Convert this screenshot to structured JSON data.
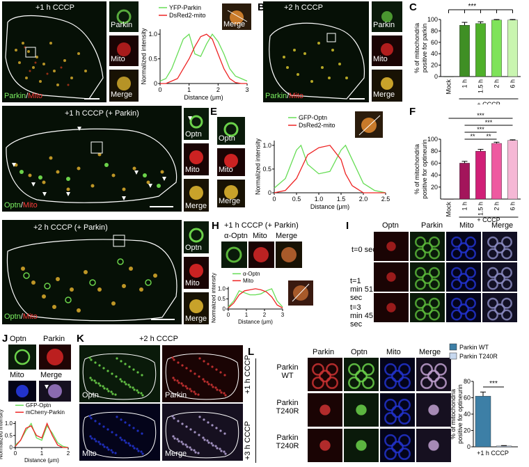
{
  "panels": {
    "A": {
      "letter": "A",
      "title": "+1 h CCCP",
      "inset_labels": [
        "Parkin",
        "Mito",
        "Merge"
      ],
      "legend_labels": [
        "Parkin",
        "Mito"
      ],
      "profile": {
        "series_names": [
          "YFP-Parkin",
          "DsRed2-mito"
        ],
        "ylabel": "Normalized intensity",
        "xlabel": "Distance (μm)",
        "xticks": [
          "0",
          "1",
          "2",
          "3"
        ],
        "yticks": [
          "0",
          "0.5",
          "1.0"
        ],
        "inset": "Merge"
      }
    },
    "B": {
      "letter": "B",
      "title": "+2 h CCCP",
      "inset_labels": [
        "Parkin",
        "Mito",
        "Merge"
      ],
      "legend_labels": [
        "Parkin",
        "Mito"
      ]
    },
    "C": {
      "letter": "C",
      "ylabel": "% of mitochondria positive for parkin",
      "yticks": [
        "0",
        "20",
        "40",
        "60",
        "80",
        "100"
      ],
      "categories": [
        "Mock",
        "1 h",
        "1.5 h",
        "2 h",
        "6 h"
      ],
      "group_label": "+ CCCP",
      "sig": "***"
    },
    "D": {
      "letter": "D",
      "title": "+1 h CCCP (+ Parkin)",
      "inset_labels": [
        "Optn",
        "Mito",
        "Merge"
      ],
      "legend_labels": [
        "Optn",
        "Mito"
      ]
    },
    "E": {
      "letter": "E",
      "inset_labels": [
        "Optn",
        "Mito",
        "Merge"
      ],
      "profile": {
        "series_names": [
          "GFP-Optn",
          "DsRed2-mito"
        ],
        "ylabel": "Normalized intensity",
        "xlabel": "Distance (μm)",
        "xticks": [
          "0",
          "0.5",
          "1.0",
          "1.5",
          "2.0",
          "2.5"
        ],
        "yticks": [
          "0",
          "0.5",
          "1.0"
        ]
      }
    },
    "F": {
      "letter": "F",
      "ylabel": "% of mitochondria positive for optineurin",
      "yticks": [
        "20",
        "40",
        "60",
        "80",
        "100"
      ],
      "categories": [
        "Mock",
        "1 h",
        "1.5 h",
        "2 h",
        "6 h"
      ],
      "group_label": "+ CCCP",
      "sig": [
        "***",
        "***",
        "***",
        "**",
        "**"
      ]
    },
    "G": {
      "letter": "G",
      "title": "+2 h CCCP (+ Parkin)",
      "inset_labels": [
        "Optn",
        "Mito",
        "Merge"
      ],
      "legend_labels": [
        "Optn",
        "Mito"
      ]
    },
    "H": {
      "letter": "H",
      "title": "+1 h CCCP (+ Parkin)",
      "col_labels": [
        "α-Optn",
        "Mito",
        "Merge"
      ],
      "profile": {
        "series_names": [
          "α-Optn",
          "Mito"
        ],
        "ylabel": "Normalized intensity",
        "xlabel": "Distance (μm)",
        "xticks": [
          "0",
          "1",
          "2",
          "3"
        ],
        "yticks": [
          "0",
          "0.5",
          "1.0"
        ]
      }
    },
    "I": {
      "letter": "I",
      "col_labels": [
        "Optn",
        "Parkin",
        "Mito",
        "Merge"
      ],
      "row_labels": [
        "t=0 sec",
        "t=1 min 51 sec",
        "t=3 min 45 sec"
      ]
    },
    "J": {
      "letter": "J",
      "labels": [
        "Optn",
        "Parkin",
        "Mito",
        "Merge"
      ],
      "profile": {
        "series_names": [
          "GFP-Optn",
          "mCherry-Parkin"
        ],
        "ylabel": "Normalized intensity",
        "xlabel": "Distance (μm)",
        "xticks": [
          "0",
          "1",
          "2"
        ],
        "yticks": [
          "0",
          "0.5",
          "1.0"
        ]
      }
    },
    "K": {
      "letter": "K",
      "title": "+2 h CCCP",
      "labels": [
        "Optn",
        "Parkin",
        "Mito",
        "Merge"
      ]
    },
    "L": {
      "letter": "L",
      "col_labels": [
        "Parkin",
        "Optn",
        "Mito",
        "Merge"
      ],
      "row_labels": [
        "Parkin WT",
        "Parkin T240R",
        "Parkin T240R"
      ],
      "side_labels": [
        "+1 h CCCP",
        "+3 h CCCP"
      ],
      "bar": {
        "legend": [
          "Parkin WT",
          "Parkin T240R"
        ],
        "ylabel": "% of mitochondria positive for optineurin",
        "yticks": [
          "0",
          "20",
          "40",
          "60",
          "80"
        ],
        "xlabel": "+1 h CCCP",
        "sig": "***"
      }
    }
  },
  "chart_data": [
    {
      "type": "bar",
      "panel": "C",
      "categories": [
        "Mock",
        "1 h",
        "1.5 h",
        "2 h",
        "6 h"
      ],
      "values": [
        0,
        90,
        93,
        99,
        99
      ],
      "errors": [
        0,
        5,
        3,
        1,
        1
      ],
      "colors": [
        "#2f6d1e",
        "#3f8f24",
        "#4fb02a",
        "#7fe35a",
        "#c9f5b0"
      ],
      "ylabel": "% of mitochondria positive for parkin",
      "ylim": [
        0,
        100
      ]
    },
    {
      "type": "bar",
      "panel": "F",
      "categories": [
        "Mock",
        "1 h",
        "1.5 h",
        "2 h",
        "6 h"
      ],
      "values": [
        0,
        60,
        80,
        93,
        98
      ],
      "errors": [
        0,
        3,
        3,
        2,
        1
      ],
      "colors": [
        "#6b0f3a",
        "#a3155b",
        "#d01f77",
        "#ee5aa0",
        "#f5b7d5"
      ],
      "ylabel": "% of mitochondria positive for optineurin",
      "ylim": [
        0,
        100
      ]
    },
    {
      "type": "bar",
      "panel": "L",
      "categories": [
        "Parkin WT",
        "Parkin T240R"
      ],
      "values": [
        62,
        1
      ],
      "errors": [
        5,
        0.5
      ],
      "colors": [
        "#3d7fa6",
        "#c7d8ee"
      ],
      "ylabel": "% of mitochondria positive for optineurin",
      "ylim": [
        0,
        80
      ]
    },
    {
      "type": "line",
      "panel": "A",
      "x": [
        0,
        0.2,
        0.4,
        0.6,
        0.8,
        1.0,
        1.2,
        1.4,
        1.6,
        1.8,
        2.0,
        2.2,
        2.4,
        2.6,
        2.8,
        3.0
      ],
      "series": [
        {
          "name": "YFP-Parkin",
          "color": "#66dd55",
          "values": [
            0.05,
            0.1,
            0.3,
            0.6,
            0.9,
            1.0,
            0.6,
            0.55,
            0.8,
            1.0,
            0.85,
            0.6,
            0.3,
            0.15,
            0.1,
            0.05
          ]
        },
        {
          "name": "DsRed2-mito",
          "color": "#ee2222",
          "values": [
            0.0,
            0.0,
            0.05,
            0.1,
            0.3,
            0.5,
            0.75,
            0.95,
            1.0,
            0.9,
            0.6,
            0.3,
            0.1,
            0.02,
            0.0,
            0.0
          ]
        }
      ],
      "xlim": [
        0,
        3
      ],
      "ylim": [
        0,
        1.1
      ]
    },
    {
      "type": "line",
      "panel": "E",
      "x": [
        0,
        0.25,
        0.5,
        0.6,
        0.75,
        1.0,
        1.25,
        1.5,
        1.6,
        1.75,
        2.0,
        2.25,
        2.5
      ],
      "series": [
        {
          "name": "GFP-Optn",
          "color": "#66dd55",
          "values": [
            0.1,
            0.3,
            0.9,
            1.0,
            0.6,
            0.4,
            0.45,
            0.9,
            1.0,
            0.7,
            0.2,
            0.05,
            0.0
          ]
        },
        {
          "name": "DsRed2-mito",
          "color": "#ee2222",
          "values": [
            0.0,
            0.05,
            0.3,
            0.5,
            0.8,
            0.95,
            1.0,
            0.7,
            0.4,
            0.15,
            0.0,
            0.0,
            0.0
          ]
        }
      ],
      "xlim": [
        0,
        2.5
      ],
      "ylim": [
        0,
        1.1
      ]
    },
    {
      "type": "line",
      "panel": "H",
      "x": [
        0,
        0.3,
        0.6,
        0.9,
        1.2,
        1.5,
        1.8,
        2.1,
        2.4,
        2.7,
        3.0
      ],
      "series": [
        {
          "name": "α-Optn",
          "color": "#66dd55",
          "values": [
            0.1,
            0.4,
            0.9,
            0.8,
            0.7,
            0.7,
            0.75,
            0.9,
            1.0,
            0.4,
            0.1
          ]
        },
        {
          "name": "Mito",
          "color": "#ee2222",
          "values": [
            0.05,
            0.3,
            0.7,
            0.9,
            0.95,
            1.0,
            0.95,
            0.85,
            0.6,
            0.2,
            0.05
          ]
        }
      ],
      "xlim": [
        0,
        3
      ],
      "ylim": [
        0,
        1.1
      ]
    },
    {
      "type": "line",
      "panel": "J",
      "x": [
        0,
        0.2,
        0.4,
        0.6,
        0.8,
        1.0,
        1.2,
        1.4,
        1.6,
        1.8,
        2.0
      ],
      "series": [
        {
          "name": "GFP-Optn",
          "color": "#66dd55",
          "values": [
            0.1,
            0.3,
            0.7,
            1.0,
            0.4,
            0.3,
            0.9,
            0.6,
            0.2,
            0.05,
            0.0
          ]
        },
        {
          "name": "mCherry-Parkin",
          "color": "#ee2222",
          "values": [
            0.05,
            0.3,
            0.8,
            0.9,
            0.5,
            0.4,
            1.0,
            0.5,
            0.1,
            0.0,
            0.0
          ]
        }
      ],
      "xlim": [
        0,
        2
      ],
      "ylim": [
        0,
        1.1
      ]
    }
  ]
}
